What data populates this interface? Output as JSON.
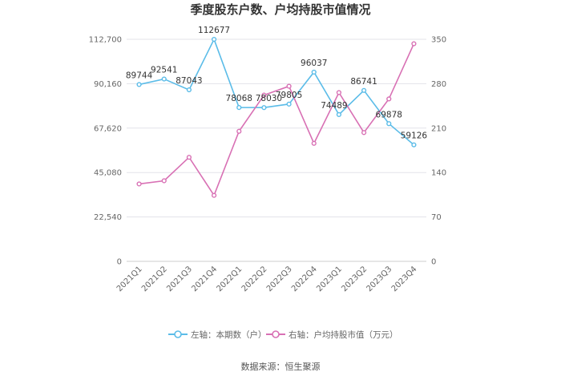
{
  "chart_data": {
    "type": "line",
    "title": "季度股东户数、户均持股市值情况",
    "categories": [
      "2021Q1",
      "2021Q2",
      "2021Q3",
      "2021Q4",
      "2022Q1",
      "2022Q2",
      "2022Q3",
      "2022Q4",
      "2023Q1",
      "2023Q2",
      "2023Q3",
      "2023Q4"
    ],
    "left_axis": {
      "ylim": [
        0,
        112700
      ],
      "ticks": [
        "0",
        "22,540",
        "45,080",
        "67,620",
        "90,160",
        "112,700"
      ]
    },
    "right_axis": {
      "ylim": [
        0,
        350
      ],
      "ticks": [
        "0",
        "70",
        "140",
        "210",
        "280",
        "350"
      ]
    },
    "series": [
      {
        "name": "左轴：本期数（户）",
        "axis": "left",
        "color": "#5bbce8",
        "values": [
          89744,
          92541,
          87043,
          112677,
          78068,
          78030,
          79805,
          96037,
          74489,
          86741,
          69878,
          59126
        ],
        "labels": [
          "89744",
          "92541",
          "87043",
          "112677",
          "78068",
          "78030",
          "79805",
          "96037",
          "74489",
          "86741",
          "69878",
          "59126"
        ]
      },
      {
        "name": "右轴：户均持股市值（万元）",
        "axis": "right",
        "color": "#d870b4",
        "values": [
          122,
          127,
          164,
          104,
          205,
          262,
          276,
          186,
          266,
          203,
          256,
          343
        ]
      }
    ],
    "grid": true,
    "legend": "bottom"
  },
  "source": "数据来源：恒生聚源"
}
